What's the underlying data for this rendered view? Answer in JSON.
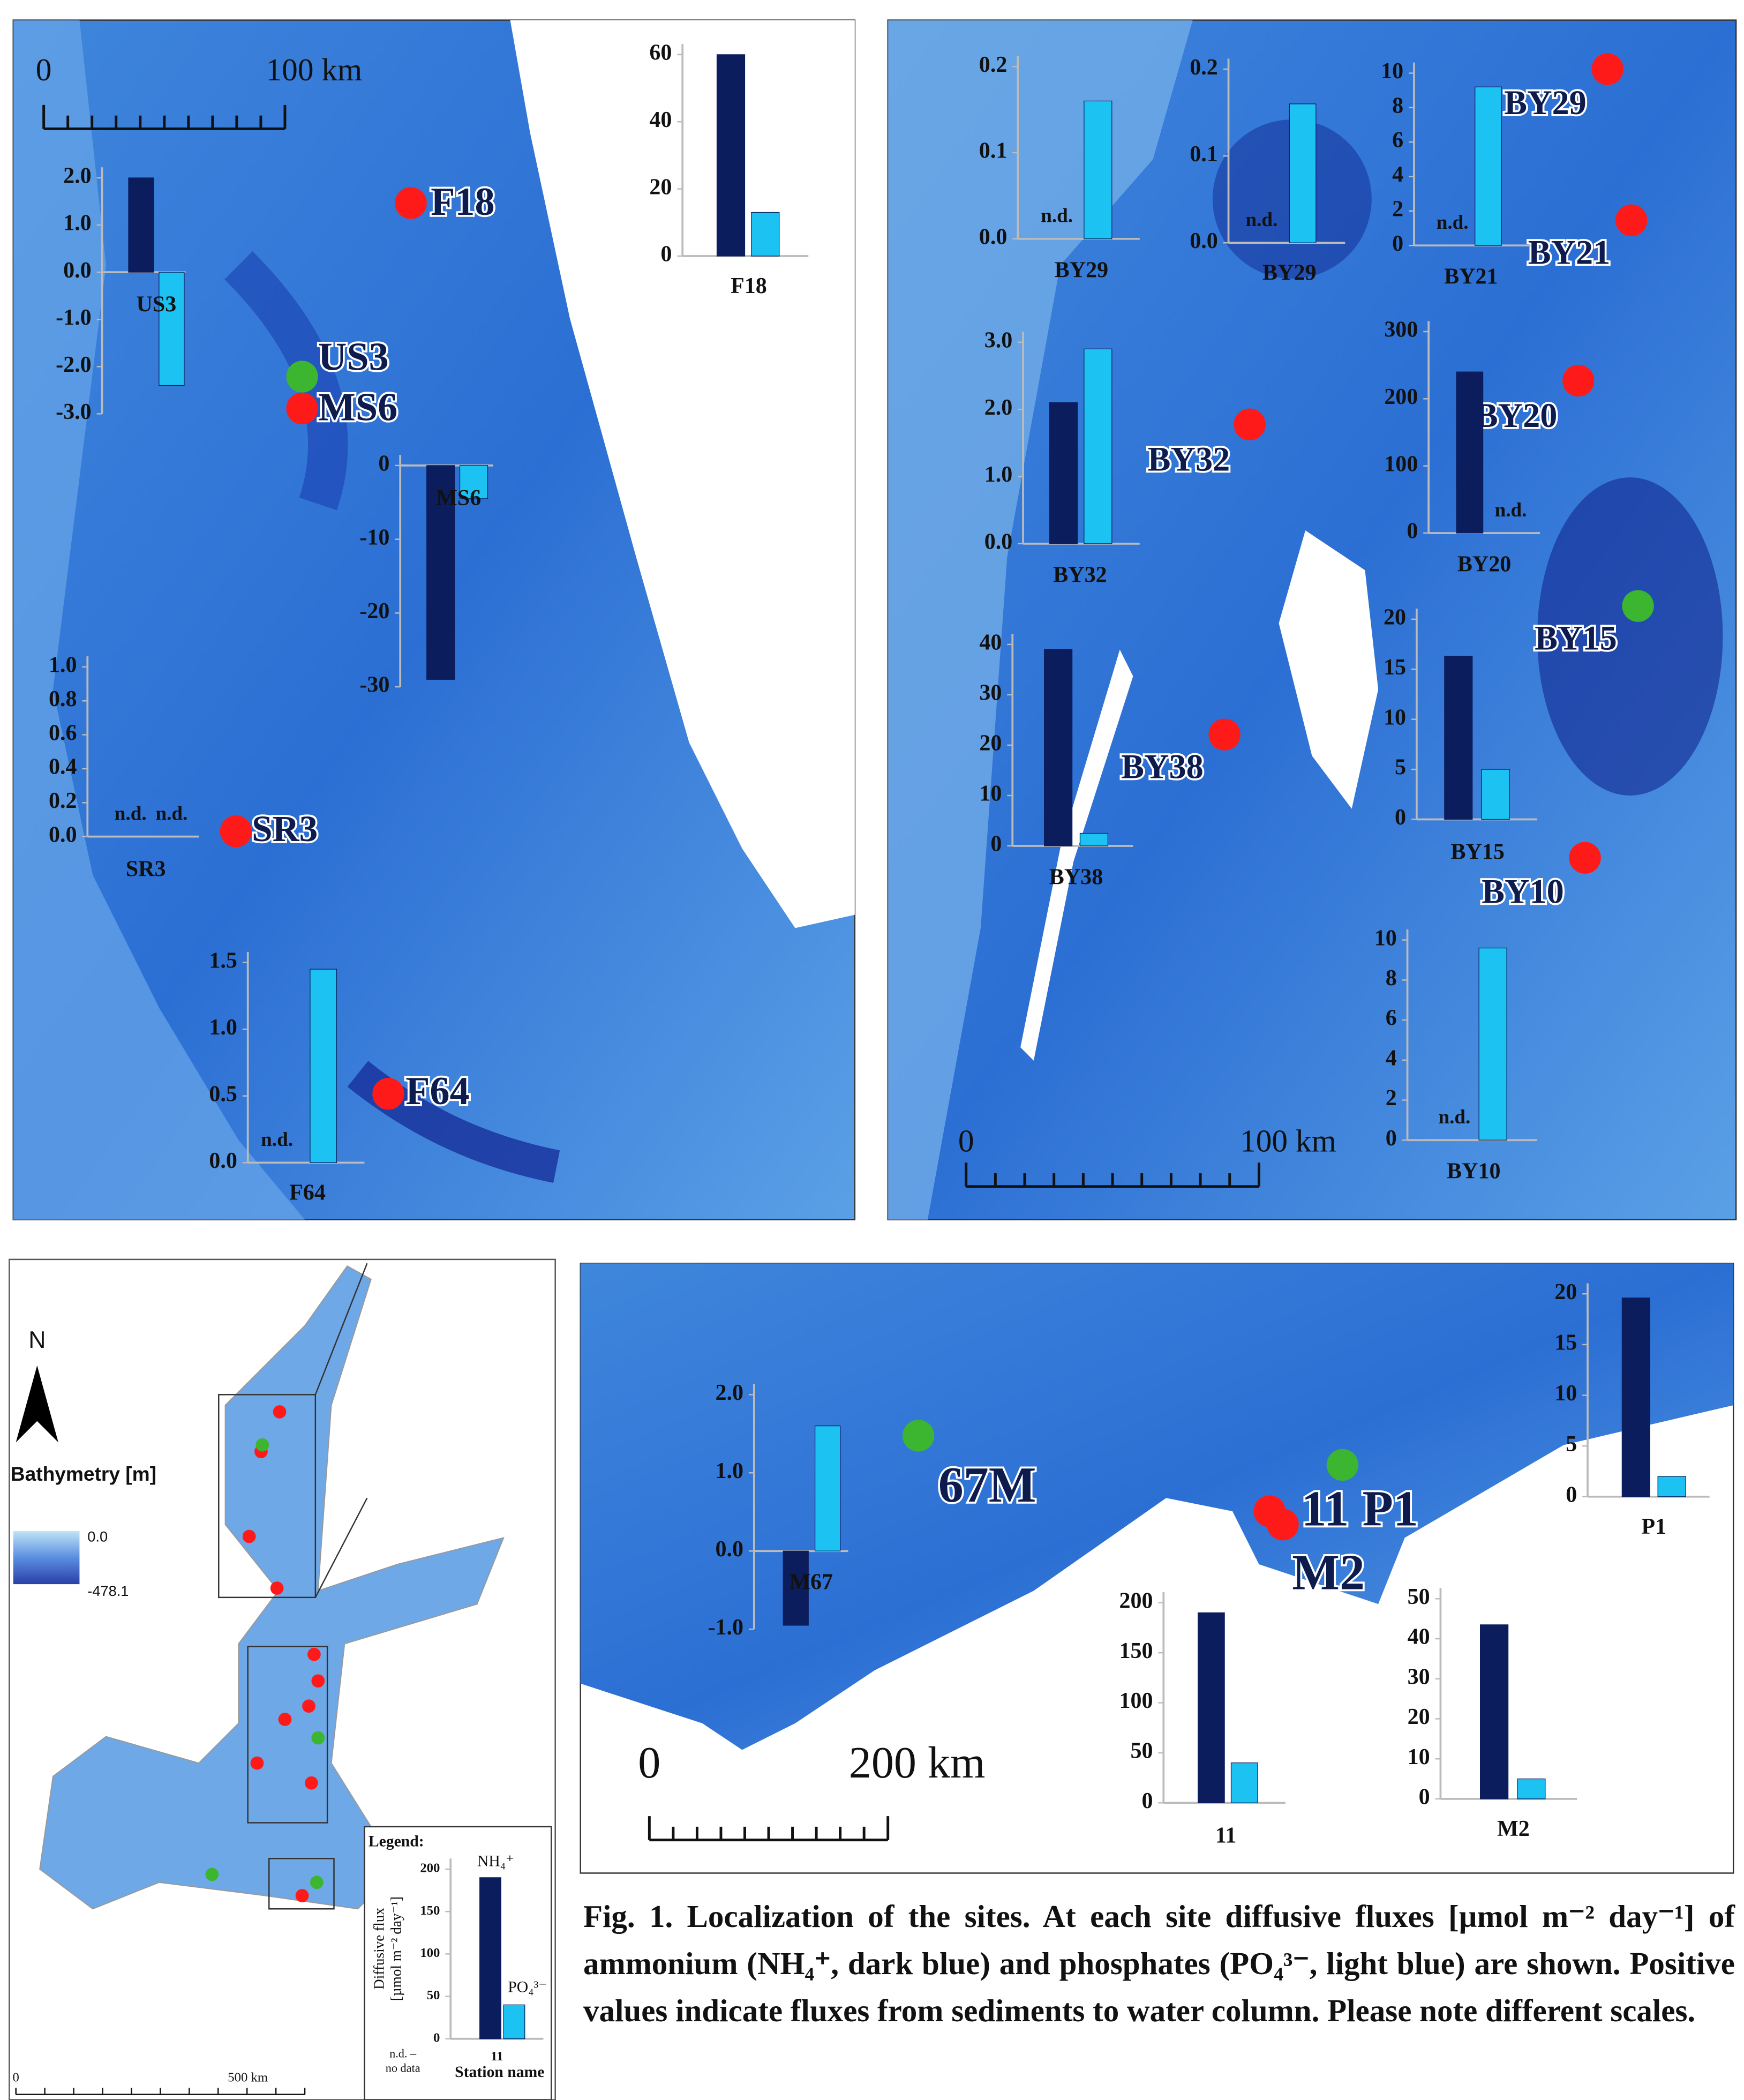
{
  "chart_data": [
    {
      "type": "bar",
      "xlabel": "US3",
      "values": [
        2.0,
        -2.4
      ],
      "colors": [
        "#0b1d5c",
        "#1cc3f2"
      ],
      "ylim": [
        -3,
        2
      ],
      "yticks": [
        {
          "value": -3,
          "label": "-3.0"
        },
        {
          "value": -2,
          "label": "-2.0"
        },
        {
          "value": -1,
          "label": "-1.0"
        },
        {
          "value": 0,
          "label": "0.0"
        },
        {
          "value": 1,
          "label": "1.0"
        },
        {
          "value": 2,
          "label": "2.0"
        }
      ]
    },
    {
      "type": "bar",
      "xlabel": "F18",
      "values": [
        60,
        13
      ],
      "colors": [
        "#0b1d5c",
        "#1cc3f2"
      ],
      "ylim": [
        0,
        60
      ],
      "yticks": [
        0,
        20,
        40,
        60
      ]
    },
    {
      "type": "bar",
      "xlabel": "MS6",
      "values": [
        -29,
        -4.5
      ],
      "colors": [
        "#0b1d5c",
        "#1cc3f2"
      ],
      "ylim": [
        -30,
        0
      ],
      "yticks": [
        -30,
        -20,
        -10,
        0
      ]
    },
    {
      "type": "bar",
      "xlabel": "SR3",
      "values": [
        null,
        null
      ],
      "value_labels": [
        "n.d.",
        "n.d."
      ],
      "colors": [
        "#0b1d5c",
        "#1cc3f2"
      ],
      "ylim": [
        0,
        1
      ],
      "yticks": [
        {
          "value": 0,
          "label": "0.0"
        },
        0.2,
        0.4,
        0.6,
        0.8,
        {
          "value": 1,
          "label": "1.0"
        }
      ]
    },
    {
      "type": "bar",
      "xlabel": "F64",
      "values": [
        null,
        1.45
      ],
      "value_labels": [
        "n.d.",
        null
      ],
      "colors": [
        "#0b1d5c",
        "#1cc3f2"
      ],
      "ylim": [
        0,
        1.5
      ],
      "yticks": [
        {
          "value": 0,
          "label": "0.0"
        },
        0.5,
        {
          "value": 1,
          "label": "1.0"
        },
        1.5
      ]
    },
    {
      "type": "bar",
      "xlabel": "BY29",
      "values": [
        null,
        0.16
      ],
      "value_labels": [
        "n.d.",
        null
      ],
      "colors": [
        "#0b1d5c",
        "#1cc3f2"
      ],
      "ylim": [
        0,
        0.2
      ],
      "yticks": [
        {
          "value": 0,
          "label": "0.0"
        },
        0.1,
        0.2
      ]
    },
    {
      "type": "bar",
      "xlabel": "BY29",
      "values": [
        null,
        0.16
      ],
      "value_labels": [
        "n.d.",
        null
      ],
      "colors": [
        "#0b1d5c",
        "#1cc3f2"
      ],
      "ylim": [
        0,
        0.2
      ],
      "yticks": [
        {
          "value": 0,
          "label": "0.0"
        },
        0.1,
        0.2
      ]
    },
    {
      "type": "bar",
      "xlabel": "BY21",
      "values": [
        null,
        9.2
      ],
      "value_labels": [
        "n.d.",
        null
      ],
      "colors": [
        "#0b1d5c",
        "#1cc3f2"
      ],
      "ylim": [
        0,
        10
      ],
      "yticks": [
        0,
        2,
        4,
        6,
        8,
        10
      ]
    },
    {
      "type": "bar",
      "xlabel": "BY32",
      "values": [
        2.1,
        2.9
      ],
      "colors": [
        "#0b1d5c",
        "#1cc3f2"
      ],
      "ylim": [
        0,
        3
      ],
      "yticks": [
        {
          "value": 0,
          "label": "0.0"
        },
        {
          "value": 1,
          "label": "1.0"
        },
        {
          "value": 2,
          "label": "2.0"
        },
        {
          "value": 3,
          "label": "3.0"
        }
      ]
    },
    {
      "type": "bar",
      "xlabel": "BY20",
      "values": [
        240,
        null
      ],
      "value_labels": [
        null,
        "n.d."
      ],
      "colors": [
        "#0b1d5c",
        "#1cc3f2"
      ],
      "ylim": [
        0,
        300
      ],
      "yticks": [
        0,
        100,
        200,
        300
      ]
    },
    {
      "type": "bar",
      "xlabel": "BY38",
      "values": [
        39,
        2.5
      ],
      "colors": [
        "#0b1d5c",
        "#1cc3f2"
      ],
      "ylim": [
        0,
        40
      ],
      "yticks": [
        0,
        10,
        20,
        30,
        40
      ]
    },
    {
      "type": "bar",
      "xlabel": "BY15",
      "values": [
        16.3,
        5
      ],
      "colors": [
        "#0b1d5c",
        "#1cc3f2"
      ],
      "ylim": [
        0,
        20
      ],
      "yticks": [
        0,
        5,
        10,
        15,
        20
      ]
    },
    {
      "type": "bar",
      "xlabel": "BY10",
      "values": [
        null,
        9.6
      ],
      "value_labels": [
        "n.d.",
        null
      ],
      "colors": [
        "#0b1d5c",
        "#1cc3f2"
      ],
      "ylim": [
        0,
        10
      ],
      "yticks": [
        0,
        2,
        4,
        6,
        8,
        10
      ]
    },
    {
      "type": "bar",
      "xlabel": "M67",
      "values": [
        -0.95,
        1.6
      ],
      "colors": [
        "#0b1d5c",
        "#1cc3f2"
      ],
      "ylim": [
        -1,
        2
      ],
      "yticks": [
        {
          "value": -1,
          "label": "-1.0"
        },
        {
          "value": 0,
          "label": "0.0"
        },
        {
          "value": 1,
          "label": "1.0"
        },
        {
          "value": 2,
          "label": "2.0"
        }
      ]
    },
    {
      "type": "bar",
      "xlabel": "P1",
      "values": [
        19.6,
        2
      ],
      "colors": [
        "#0b1d5c",
        "#1cc3f2"
      ],
      "ylim": [
        0,
        20
      ],
      "yticks": [
        0,
        5,
        10,
        15,
        20
      ]
    },
    {
      "type": "bar",
      "xlabel": "11",
      "values": [
        190,
        40
      ],
      "colors": [
        "#0b1d5c",
        "#1cc3f2"
      ],
      "ylim": [
        0,
        200
      ],
      "yticks": [
        0,
        50,
        100,
        150,
        200
      ]
    },
    {
      "type": "bar",
      "xlabel": "M2",
      "values": [
        43.5,
        5
      ],
      "colors": [
        "#0b1d5c",
        "#1cc3f2"
      ],
      "ylim": [
        0,
        50
      ],
      "yticks": [
        0,
        10,
        20,
        30,
        40,
        50
      ]
    },
    {
      "type": "bar",
      "title": "Legend:",
      "xlabel": "11",
      "xlabel_note": "Station name",
      "series_names": [
        "NH₄⁺",
        "PO₄³⁻"
      ],
      "ylabel": [
        "Diffusive flux",
        "[µmol m⁻² day⁻¹]"
      ],
      "note": [
        "n.d. –",
        "no data"
      ],
      "values": [
        190,
        40
      ],
      "colors": [
        "#0b1d5c",
        "#1cc3f2"
      ],
      "ylim": [
        0,
        200
      ],
      "yticks": [
        0,
        50,
        100,
        150,
        200
      ]
    }
  ],
  "maps": [
    {
      "scale_bar": [
        "0",
        "100 km"
      ],
      "sites": [
        {
          "label": "F18",
          "marker": "#ff1a1a"
        },
        {
          "label": "US3",
          "marker": "#3cb531"
        },
        {
          "label": "MS6",
          "marker": "#ff1a1a"
        },
        {
          "label": "SR3",
          "marker": "#ff1a1a"
        },
        {
          "label": "F64",
          "marker": "#ff1a1a"
        }
      ]
    },
    {
      "scale_bar": [
        "0",
        "100 km"
      ],
      "sites": [
        {
          "label": "BY29",
          "marker": "#ff1a1a"
        },
        {
          "label": "BY21",
          "marker": "#ff1a1a"
        },
        {
          "label": "BY20",
          "marker": "#ff1a1a"
        },
        {
          "label": "BY32",
          "marker": "#ff1a1a"
        },
        {
          "label": "BY15",
          "marker": "#3cb531"
        },
        {
          "label": "BY38",
          "marker": "#ff1a1a"
        },
        {
          "label": "BY10",
          "marker": "#ff1a1a"
        }
      ]
    },
    {
      "scale_bar": [
        "0",
        "200 km"
      ],
      "sites": [
        {
          "label": "67M",
          "marker": "#3cb531"
        },
        {
          "label": "11",
          "marker": "#ff1a1a"
        },
        {
          "label": "P1",
          "marker": "#3cb531"
        },
        {
          "label": "M2",
          "marker": "#ff1a1a"
        }
      ]
    }
  ],
  "overview": {
    "north": "N",
    "legend_title": "Bathymetry [m]",
    "depth_labels": [
      "0.0",
      "-478.1"
    ],
    "scale_bar": [
      "0",
      "500 km"
    ]
  },
  "caption": "Fig. 1. Localization of the sites. At each site diffusive fluxes [µmol m⁻² day⁻¹] of ammonium (NH₄⁺, dark blue) and phosphates (PO₄³⁻, light blue) are shown. Positive values indicate fluxes from sediments to water column. Please note different scales."
}
